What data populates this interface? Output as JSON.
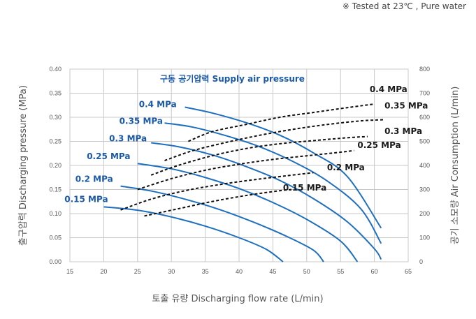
{
  "note": "※ Tested at  23℃ , Pure water",
  "chart_data": {
    "type": "line",
    "title": "구동 공기압력 Supply air pressure",
    "xlabel": "토출 유량 Discharging flow rate (L/min)",
    "ylabel_left": "출구압력 Discharging pressure (MPa)",
    "ylabel_right": "공기 소모량 Air Consumption (L/min)",
    "xlim": [
      15,
      65
    ],
    "ylim_left": [
      0,
      0.4
    ],
    "ylim_right": [
      0,
      800
    ],
    "x_ticks": [
      "15",
      "20",
      "25",
      "30",
      "35",
      "40",
      "45",
      "50",
      "55",
      "60",
      "65"
    ],
    "y_left_ticks": [
      "0.00",
      "0.05",
      "0.10",
      "0.15",
      "0.20",
      "0.25",
      "0.30",
      "0.35",
      "0.40"
    ],
    "y_right_ticks": [
      "0",
      "100",
      "200",
      "300",
      "400",
      "500",
      "600",
      "700",
      "800"
    ],
    "grid": true,
    "pressure_series": [
      {
        "name": "0.15 MPa",
        "points": [
          [
            20,
            0.114
          ],
          [
            25,
            0.107
          ],
          [
            30,
            0.093
          ],
          [
            35,
            0.074
          ],
          [
            40,
            0.05
          ],
          [
            44,
            0.026
          ],
          [
            46.5,
            0.0
          ]
        ]
      },
      {
        "name": "0.2 MPa",
        "points": [
          [
            22.5,
            0.157
          ],
          [
            27,
            0.147
          ],
          [
            32,
            0.13
          ],
          [
            37,
            0.109
          ],
          [
            42,
            0.083
          ],
          [
            47,
            0.053
          ],
          [
            51,
            0.024
          ],
          [
            52.5,
            0.0
          ]
        ]
      },
      {
        "name": "0.25 MPa",
        "points": [
          [
            25,
            0.204
          ],
          [
            30,
            0.193
          ],
          [
            35,
            0.175
          ],
          [
            40,
            0.152
          ],
          [
            45,
            0.123
          ],
          [
            50,
            0.088
          ],
          [
            55,
            0.043
          ],
          [
            57.5,
            0.0
          ]
        ]
      },
      {
        "name": "0.3 MPa",
        "points": [
          [
            27,
            0.247
          ],
          [
            31,
            0.239
          ],
          [
            36,
            0.222
          ],
          [
            41,
            0.198
          ],
          [
            46,
            0.169
          ],
          [
            51,
            0.131
          ],
          [
            56,
            0.083
          ],
          [
            60,
            0.027
          ],
          [
            61,
            0.005
          ]
        ]
      },
      {
        "name": "0.35 MPa",
        "points": [
          [
            29,
            0.288
          ],
          [
            33,
            0.28
          ],
          [
            38,
            0.262
          ],
          [
            43,
            0.239
          ],
          [
            48,
            0.208
          ],
          [
            53,
            0.168
          ],
          [
            58,
            0.11
          ],
          [
            61,
            0.038
          ]
        ]
      },
      {
        "name": "0.4 MPa",
        "points": [
          [
            32,
            0.321
          ],
          [
            36,
            0.309
          ],
          [
            41,
            0.289
          ],
          [
            46,
            0.263
          ],
          [
            51,
            0.226
          ],
          [
            56,
            0.177
          ],
          [
            61,
            0.07
          ]
        ]
      }
    ],
    "air_consumption_series": [
      {
        "name": "0.15 MPa",
        "points": [
          [
            26,
            190
          ],
          [
            31,
            220
          ],
          [
            36,
            250
          ],
          [
            41,
            275
          ],
          [
            46,
            295
          ],
          [
            48,
            300
          ]
        ]
      },
      {
        "name": "0.2 MPa",
        "points": [
          [
            22.5,
            215
          ],
          [
            27,
            260
          ],
          [
            32,
            295
          ],
          [
            37,
            320
          ],
          [
            42,
            340
          ],
          [
            47,
            357
          ],
          [
            51,
            370
          ]
        ]
      },
      {
        "name": "0.25 MPa",
        "points": [
          [
            25,
            300
          ],
          [
            30,
            345
          ],
          [
            35,
            380
          ],
          [
            40,
            405
          ],
          [
            45,
            425
          ],
          [
            50,
            440
          ],
          [
            55,
            455
          ],
          [
            57,
            462
          ]
        ]
      },
      {
        "name": "0.3 MPa",
        "points": [
          [
            27,
            360
          ],
          [
            31,
            400
          ],
          [
            36,
            440
          ],
          [
            41,
            470
          ],
          [
            46,
            490
          ],
          [
            51,
            503
          ],
          [
            56,
            515
          ],
          [
            59,
            520
          ]
        ]
      },
      {
        "name": "0.35 MPa",
        "points": [
          [
            29,
            420
          ],
          [
            33,
            460
          ],
          [
            38,
            495
          ],
          [
            43,
            525
          ],
          [
            48,
            550
          ],
          [
            53,
            570
          ],
          [
            58,
            585
          ],
          [
            61.5,
            590
          ]
        ]
      },
      {
        "name": "0.4 MPa",
        "points": [
          [
            32.5,
            500
          ],
          [
            36,
            540
          ],
          [
            41,
            570
          ],
          [
            46,
            600
          ],
          [
            51,
            620
          ],
          [
            56,
            640
          ],
          [
            60,
            655
          ]
        ]
      }
    ],
    "pressure_label_positions": [
      {
        "name": "0.15 MPa",
        "x": 14.2,
        "y": 0.124
      },
      {
        "name": "0.2 MPa",
        "x": 15.8,
        "y": 0.166
      },
      {
        "name": "0.25 MPa",
        "x": 17.5,
        "y": 0.213
      },
      {
        "name": "0.3 MPa",
        "x": 20.8,
        "y": 0.25
      },
      {
        "name": "0.35 MPa",
        "x": 22.3,
        "y": 0.286
      },
      {
        "name": "0.4 MPa",
        "x": 25.2,
        "y": 0.321
      }
    ],
    "air_label_positions": [
      {
        "name": "0.15 MPa",
        "x": 46.5,
        "y": 295
      },
      {
        "name": "0.2 MPa",
        "x": 53.0,
        "y": 380
      },
      {
        "name": "0.25 MPa",
        "x": 57.5,
        "y": 472
      },
      {
        "name": "0.3 MPa",
        "x": 61.5,
        "y": 530
      },
      {
        "name": "0.35 MPa",
        "x": 61.5,
        "y": 636
      },
      {
        "name": "0.4 MPa",
        "x": 59.3,
        "y": 705
      }
    ]
  }
}
